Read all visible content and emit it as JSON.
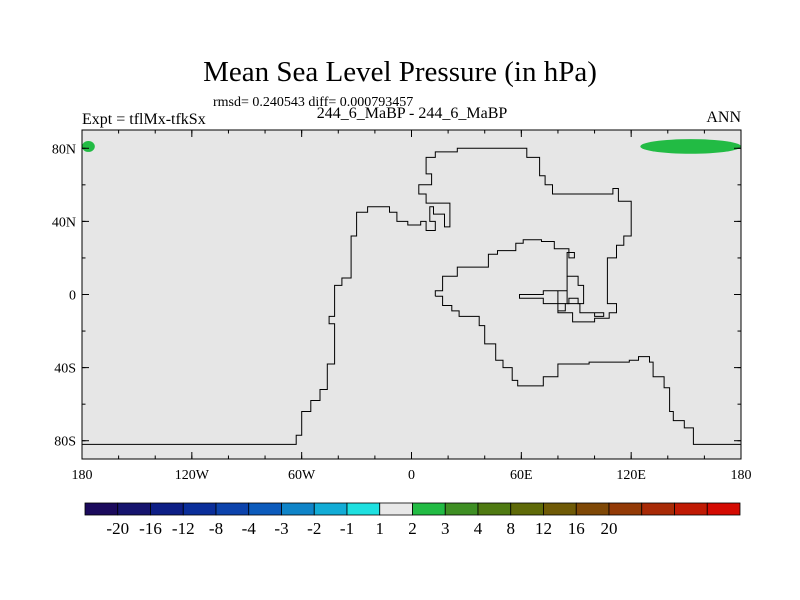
{
  "header": {
    "title": "Mean Sea Level Pressure (in hPa)",
    "stats": "rmsd= 0.240543 diff= 0.000793457",
    "expt": "Expt = tflMx-tfkSx",
    "cases": "244_6_MaBP - 244_6_MaBP",
    "season": "ANN"
  },
  "chart_data": {
    "type": "heatmap",
    "title": "Mean Sea Level Pressure (in hPa)",
    "xlabel": "",
    "ylabel": "",
    "xlim": [
      -180,
      180
    ],
    "ylim": [
      -90,
      90
    ],
    "x_ticks": [
      {
        "value": -180,
        "label": "180"
      },
      {
        "value": -120,
        "label": "120W"
      },
      {
        "value": -60,
        "label": "60W"
      },
      {
        "value": 0,
        "label": "0"
      },
      {
        "value": 60,
        "label": "60E"
      },
      {
        "value": 120,
        "label": "120E"
      },
      {
        "value": 180,
        "label": "180"
      }
    ],
    "y_ticks": [
      {
        "value": 80,
        "label": "80N"
      },
      {
        "value": 40,
        "label": "40N"
      },
      {
        "value": 0,
        "label": "0"
      },
      {
        "value": -40,
        "label": "40S"
      },
      {
        "value": -80,
        "label": "80S"
      }
    ],
    "background_fill": "#e6e6e6",
    "regions": [
      {
        "level_range": "1 to 2",
        "color": "#22bb44",
        "lon": [
          125,
          180
        ],
        "lat": [
          77,
          85
        ]
      },
      {
        "level_range": "1 to 2",
        "color": "#22bb44",
        "lon": [
          -180,
          -173
        ],
        "lat": [
          78,
          84
        ]
      }
    ],
    "colorbar": {
      "colors": [
        "#1b0a5c",
        "#16146e",
        "#0e1f86",
        "#0a2e9a",
        "#0c43ac",
        "#0c5bbc",
        "#0f84c8",
        "#12acd6",
        "#1ee0e0",
        "#e8e8e8",
        "#22bb44",
        "#3f8f24",
        "#4f7a12",
        "#5f6a08",
        "#6f5a06",
        "#7f4806",
        "#933a06",
        "#a82a06",
        "#c01a04",
        "#d40a02"
      ],
      "labels": [
        "-20",
        "-16",
        "-12",
        "-8",
        "-4",
        "-3",
        "-2",
        "-1",
        "1",
        "2",
        "3",
        "4",
        "8",
        "12",
        "16",
        "20"
      ],
      "label_boundary_start": 1
    },
    "coastlines": [
      {
        "name": "americas",
        "points": [
          [
            -180,
            -82
          ],
          [
            -63,
            -82
          ],
          [
            -63,
            -77
          ],
          [
            -60,
            -77
          ],
          [
            -60,
            -64
          ],
          [
            -55,
            -64
          ],
          [
            -55,
            -58
          ],
          [
            -50,
            -58
          ],
          [
            -50,
            -52
          ],
          [
            -46,
            -52
          ],
          [
            -46,
            -38
          ],
          [
            -42,
            -38
          ],
          [
            -42,
            -16
          ],
          [
            -45,
            -16
          ],
          [
            -45,
            -12
          ],
          [
            -42,
            -12
          ],
          [
            -42,
            -8
          ],
          [
            -42,
            5
          ],
          [
            -38,
            5
          ],
          [
            -38,
            9
          ],
          [
            -33,
            9
          ],
          [
            -33,
            32
          ],
          [
            -30,
            32
          ],
          [
            -30,
            45
          ],
          [
            -24,
            45
          ],
          [
            -24,
            48
          ],
          [
            -12,
            48
          ],
          [
            -12,
            45
          ],
          [
            -8,
            45
          ],
          [
            -8,
            40
          ],
          [
            -2,
            40
          ],
          [
            -2,
            38
          ],
          [
            5,
            38
          ],
          [
            5,
            40
          ],
          [
            8,
            40
          ],
          [
            8,
            35
          ],
          [
            13,
            35
          ],
          [
            13,
            40
          ],
          [
            10,
            40
          ],
          [
            10,
            48
          ],
          [
            12,
            48
          ],
          [
            12,
            44
          ],
          [
            18,
            44
          ],
          [
            18,
            37
          ],
          [
            21,
            37
          ],
          [
            21,
            50
          ],
          [
            8,
            50
          ],
          [
            8,
            55
          ],
          [
            4,
            55
          ],
          [
            4,
            60
          ],
          [
            11,
            60
          ],
          [
            11,
            66
          ],
          [
            8,
            66
          ],
          [
            8,
            75
          ],
          [
            13,
            75
          ],
          [
            13,
            78
          ],
          [
            25,
            78
          ],
          [
            25,
            80
          ],
          [
            63,
            80
          ],
          [
            63,
            75
          ],
          [
            70,
            75
          ],
          [
            70,
            65
          ],
          [
            73,
            65
          ],
          [
            73,
            60
          ],
          [
            77,
            60
          ],
          [
            77,
            55
          ],
          [
            110,
            55
          ],
          [
            110,
            58
          ],
          [
            113,
            58
          ],
          [
            113,
            55
          ],
          [
            113,
            51
          ],
          [
            120,
            51
          ],
          [
            120,
            32
          ],
          [
            116,
            32
          ],
          [
            116,
            27
          ],
          [
            112,
            27
          ],
          [
            112,
            20
          ],
          [
            107,
            20
          ],
          [
            107,
            -5
          ],
          [
            112,
            -5
          ],
          [
            112,
            -10
          ],
          [
            108,
            -10
          ],
          [
            108,
            -13
          ],
          [
            100,
            -13
          ],
          [
            100,
            -15
          ],
          [
            88,
            -15
          ],
          [
            88,
            -10
          ],
          [
            80,
            -10
          ],
          [
            80,
            -5
          ],
          [
            72,
            -5
          ],
          [
            72,
            -2
          ],
          [
            59,
            -2
          ],
          [
            59,
            0
          ],
          [
            72,
            0
          ],
          [
            72,
            2
          ],
          [
            80,
            2
          ],
          [
            80,
            -5
          ],
          [
            84,
            -5
          ],
          [
            84,
            -9
          ],
          [
            80,
            -9
          ],
          [
            80,
            -5
          ],
          [
            80,
            2
          ],
          [
            85,
            2
          ],
          [
            85,
            10
          ],
          [
            85,
            -5
          ],
          [
            92,
            -5
          ],
          [
            92,
            -10
          ],
          [
            100,
            -10
          ],
          [
            100,
            -12
          ],
          [
            105,
            -12
          ],
          [
            105,
            -10
          ],
          [
            100,
            -10
          ]
        ]
      },
      {
        "name": "mainland_east",
        "points": [
          [
            13,
            -1
          ],
          [
            13,
            2
          ],
          [
            17,
            2
          ],
          [
            17,
            10
          ],
          [
            25,
            10
          ],
          [
            25,
            15
          ],
          [
            42,
            15
          ],
          [
            42,
            22
          ],
          [
            47,
            22
          ],
          [
            47,
            24
          ],
          [
            57,
            24
          ],
          [
            57,
            28
          ],
          [
            61,
            28
          ],
          [
            61,
            30
          ],
          [
            71,
            30
          ],
          [
            71,
            29
          ],
          [
            78,
            29
          ],
          [
            78,
            25
          ],
          [
            86,
            25
          ],
          [
            86,
            20
          ],
          [
            89,
            20
          ],
          [
            89,
            23
          ],
          [
            85,
            23
          ],
          [
            85,
            10
          ],
          [
            91,
            10
          ],
          [
            91,
            5
          ],
          [
            94,
            5
          ],
          [
            94,
            -5
          ],
          [
            91,
            -5
          ],
          [
            91,
            -2
          ],
          [
            86,
            -2
          ],
          [
            86,
            -5
          ],
          [
            84,
            -5
          ]
        ]
      },
      {
        "name": "mainland_south",
        "points": [
          [
            13,
            -1
          ],
          [
            17,
            -1
          ],
          [
            17,
            -6
          ],
          [
            22,
            -6
          ],
          [
            22,
            -9
          ],
          [
            26,
            -9
          ],
          [
            26,
            -12
          ],
          [
            37,
            -12
          ],
          [
            37,
            -17
          ],
          [
            40,
            -17
          ],
          [
            40,
            -27
          ],
          [
            46,
            -27
          ],
          [
            46,
            -36
          ],
          [
            50,
            -36
          ],
          [
            50,
            -40
          ],
          [
            55,
            -40
          ],
          [
            55,
            -47
          ],
          [
            58,
            -47
          ],
          [
            58,
            -50
          ],
          [
            72,
            -50
          ],
          [
            72,
            -45
          ],
          [
            80,
            -45
          ],
          [
            80,
            -38
          ],
          [
            97,
            -38
          ],
          [
            97,
            -37
          ],
          [
            119,
            -37
          ],
          [
            119,
            -36
          ],
          [
            124,
            -36
          ],
          [
            124,
            -34
          ],
          [
            130,
            -34
          ],
          [
            130,
            -37
          ],
          [
            132,
            -37
          ],
          [
            132,
            -45
          ],
          [
            138,
            -45
          ],
          [
            138,
            -51
          ],
          [
            141,
            -51
          ],
          [
            141,
            -64
          ],
          [
            143,
            -64
          ],
          [
            143,
            -69
          ],
          [
            149,
            -69
          ],
          [
            149,
            -73
          ],
          [
            154,
            -73
          ],
          [
            154,
            -82
          ],
          [
            180,
            -82
          ]
        ]
      }
    ]
  }
}
